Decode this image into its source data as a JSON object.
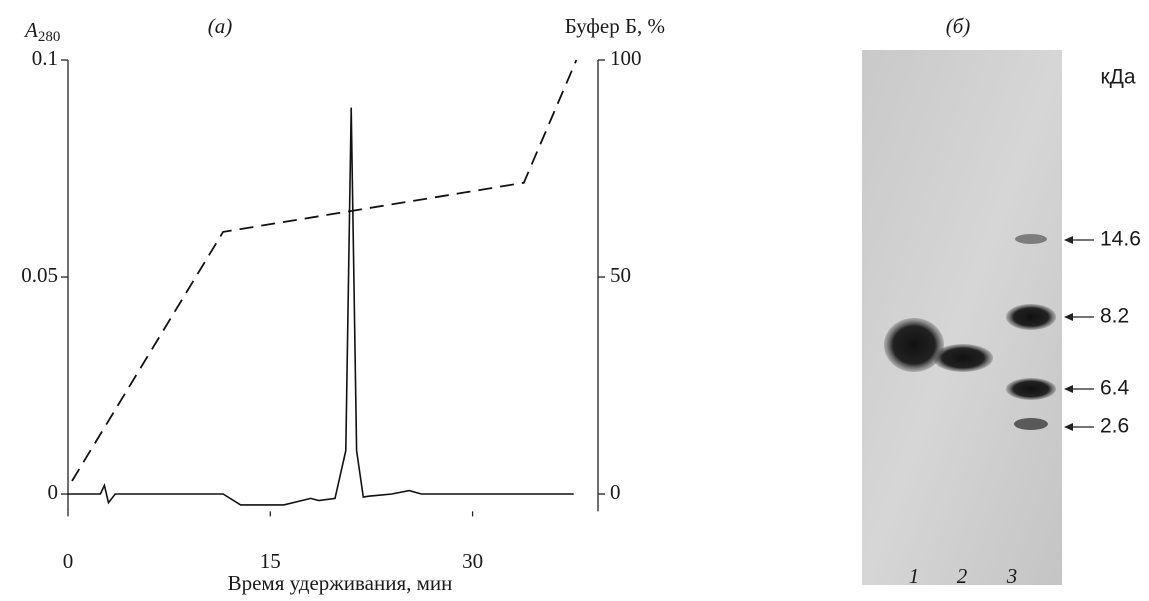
{
  "chart_data": {
    "type": "line",
    "panel_label": "(a)",
    "ylabel": {
      "symbol": "A",
      "subscript": "280"
    },
    "y2label": "Буфер Б, %",
    "xlabel": "Время удерживания, мин",
    "xlim": [
      0,
      39.3
    ],
    "xticks": [
      0,
      15,
      30
    ],
    "ylim": [
      -0.004,
      0.1
    ],
    "yticks": [
      0,
      0.05,
      0.1
    ],
    "y2lim": [
      -4,
      100
    ],
    "y2ticks": [
      0,
      50,
      100
    ],
    "grid": false,
    "series": [
      {
        "color": "#111111",
        "style": "solid",
        "x": [
          0,
          2.4,
          2.7,
          3.0,
          3.5,
          11.5,
          12.8,
          16.0,
          18.0,
          18.6,
          19.8,
          20.6,
          21.0,
          21.4,
          21.9,
          22.3,
          24.0,
          25.3,
          26.2,
          37.5
        ],
        "values": [
          0,
          0,
          0.002,
          -0.002,
          0,
          0,
          -0.0025,
          -0.0025,
          -0.001,
          -0.0015,
          -0.001,
          0.01,
          0.089,
          0.01,
          -0.0007,
          -0.0005,
          0,
          0.0008,
          0,
          0
        ]
      },
      {
        "color": "#111111",
        "style": "dashed",
        "axis": "y2",
        "x": [
          0.3,
          11.5,
          33.8,
          37.7
        ],
        "values": [
          3,
          60.4,
          71.7,
          100
        ]
      }
    ]
  },
  "gel": {
    "panel_label": "(б)",
    "unit": "кДа",
    "markers": [
      14.6,
      8.2,
      6.4,
      2.6
    ],
    "lanes": [
      "1",
      "2",
      "3"
    ]
  }
}
